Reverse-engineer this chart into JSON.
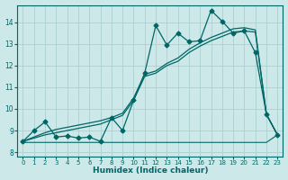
{
  "xlabel": "Humidex (Indice chaleur)",
  "bg_color": "#cce8e8",
  "grid_color": "#b0d4d4",
  "line_color": "#006666",
  "xlim": [
    -0.5,
    23.5
  ],
  "ylim": [
    7.8,
    14.8
  ],
  "yticks": [
    8,
    9,
    10,
    11,
    12,
    13,
    14
  ],
  "xticks": [
    0,
    1,
    2,
    3,
    4,
    5,
    6,
    7,
    8,
    9,
    10,
    11,
    12,
    13,
    14,
    15,
    16,
    17,
    18,
    19,
    20,
    21,
    22,
    23
  ],
  "series_main_x": [
    0,
    1,
    2,
    3,
    4,
    5,
    6,
    7,
    8,
    9,
    10,
    11,
    12,
    13,
    14,
    15,
    16,
    17,
    18,
    19,
    20,
    21,
    22,
    23
  ],
  "series_main_y": [
    8.5,
    9.0,
    9.4,
    8.7,
    8.75,
    8.65,
    8.7,
    8.5,
    9.6,
    9.0,
    10.4,
    11.65,
    13.85,
    12.95,
    13.5,
    13.1,
    13.15,
    14.55,
    14.05,
    13.5,
    13.6,
    12.6,
    9.75,
    8.8
  ],
  "series_flat_x": [
    0,
    1,
    2,
    3,
    4,
    5,
    6,
    7,
    8,
    9,
    10,
    11,
    12,
    13,
    14,
    15,
    16,
    17,
    18,
    19,
    20,
    21,
    22,
    23
  ],
  "series_flat_y": [
    8.45,
    8.45,
    8.45,
    8.45,
    8.45,
    8.45,
    8.45,
    8.45,
    8.45,
    8.45,
    8.45,
    8.45,
    8.45,
    8.45,
    8.45,
    8.45,
    8.45,
    8.45,
    8.45,
    8.45,
    8.45,
    8.45,
    8.45,
    8.8
  ],
  "series_trend1_x": [
    0,
    1,
    2,
    3,
    4,
    5,
    6,
    7,
    8,
    9,
    10,
    11,
    12,
    13,
    14,
    15,
    16,
    17,
    18,
    19,
    20,
    21,
    22,
    23
  ],
  "series_trend1_y": [
    8.5,
    8.65,
    8.8,
    8.9,
    9.0,
    9.1,
    9.2,
    9.3,
    9.5,
    9.7,
    10.4,
    11.5,
    11.65,
    12.0,
    12.2,
    12.6,
    12.9,
    13.15,
    13.35,
    13.55,
    13.6,
    13.55,
    9.75,
    8.8
  ],
  "series_trend2_x": [
    0,
    1,
    2,
    3,
    4,
    5,
    6,
    7,
    8,
    9,
    10,
    11,
    12,
    13,
    14,
    15,
    16,
    17,
    18,
    19,
    20,
    21,
    22,
    23
  ],
  "series_trend2_y": [
    8.5,
    8.7,
    8.9,
    9.05,
    9.15,
    9.25,
    9.35,
    9.45,
    9.6,
    9.8,
    10.5,
    11.6,
    11.75,
    12.1,
    12.35,
    12.75,
    13.05,
    13.3,
    13.5,
    13.7,
    13.75,
    13.65,
    9.75,
    8.8
  ]
}
